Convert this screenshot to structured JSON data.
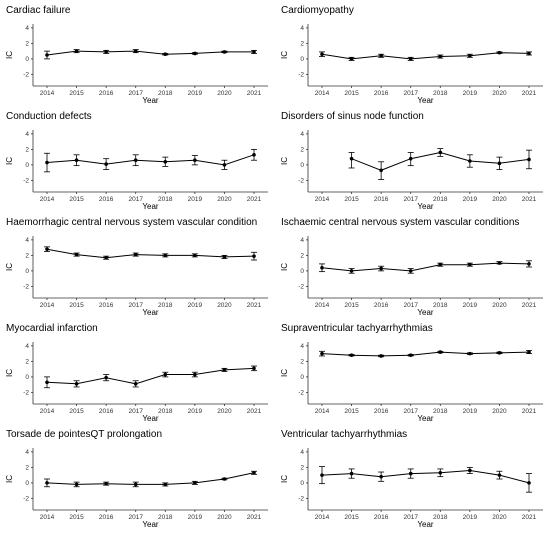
{
  "chart_data": [
    {
      "type": "line",
      "title": "Cardiac failure",
      "xlabel": "Year",
      "ylabel": "IC",
      "x": [
        "2014",
        "2015",
        "2016",
        "2017",
        "2018",
        "2019",
        "2020",
        "2021"
      ],
      "yticks": [
        "4",
        "2",
        "0",
        "-2"
      ],
      "ylim": [
        -3.5,
        4.5
      ],
      "values": [
        0.5,
        1.0,
        0.9,
        1.0,
        0.6,
        0.7,
        0.9,
        0.9
      ],
      "lower": [
        0.0,
        0.8,
        0.7,
        0.8,
        0.5,
        0.6,
        0.8,
        0.7
      ],
      "upper": [
        1.0,
        1.2,
        1.1,
        1.2,
        0.7,
        0.8,
        1.0,
        1.1
      ]
    },
    {
      "type": "line",
      "title": "Cardiomyopathy",
      "xlabel": "Year",
      "ylabel": "IC",
      "x": [
        "2014",
        "2015",
        "2016",
        "2017",
        "2018",
        "2019",
        "2020",
        "2021"
      ],
      "yticks": [
        "4",
        "2",
        "0",
        "-2"
      ],
      "ylim": [
        -3.5,
        4.5
      ],
      "values": [
        0.6,
        0.0,
        0.4,
        0.0,
        0.3,
        0.4,
        0.8,
        0.7
      ],
      "lower": [
        0.3,
        -0.2,
        0.2,
        -0.2,
        0.1,
        0.2,
        0.7,
        0.5
      ],
      "upper": [
        0.9,
        0.2,
        0.6,
        0.2,
        0.5,
        0.6,
        0.9,
        0.9
      ]
    },
    {
      "type": "line",
      "title": "Conduction defects",
      "xlabel": "Year",
      "ylabel": "IC",
      "x": [
        "2014",
        "2015",
        "2016",
        "2017",
        "2018",
        "2019",
        "2020",
        "2021"
      ],
      "yticks": [
        "4",
        "2",
        "0",
        "-2"
      ],
      "ylim": [
        -3.5,
        4.5
      ],
      "values": [
        0.3,
        0.6,
        0.1,
        0.6,
        0.4,
        0.6,
        0.0,
        1.3
      ],
      "lower": [
        -0.9,
        -0.1,
        -0.6,
        -0.1,
        -0.2,
        0.0,
        -0.6,
        0.6
      ],
      "upper": [
        1.5,
        1.3,
        0.8,
        1.3,
        1.0,
        1.2,
        0.6,
        2.0
      ]
    },
    {
      "type": "line",
      "title": "Disorders of sinus node function",
      "xlabel": "Year",
      "ylabel": "IC",
      "x": [
        "2014",
        "2015",
        "2016",
        "2017",
        "2018",
        "2019",
        "2020",
        "2021"
      ],
      "yticks": [
        "4",
        "2",
        "0",
        "-2"
      ],
      "ylim": [
        -3.5,
        4.5
      ],
      "values": [
        null,
        0.8,
        -0.7,
        0.8,
        1.6,
        0.5,
        0.2,
        0.7
      ],
      "lower": [
        null,
        -0.4,
        -1.9,
        -0.1,
        1.1,
        -0.3,
        -0.6,
        -0.5
      ],
      "upper": [
        null,
        1.6,
        0.4,
        1.6,
        2.1,
        1.3,
        1.0,
        1.9
      ]
    },
    {
      "type": "line",
      "title": "Haemorrhagic central nervous system vascular condition",
      "xlabel": "Year",
      "ylabel": "IC",
      "x": [
        "2014",
        "2015",
        "2016",
        "2017",
        "2018",
        "2019",
        "2020",
        "2021"
      ],
      "yticks": [
        "4",
        "2",
        "0",
        "-2"
      ],
      "ylim": [
        -3.5,
        4.5
      ],
      "values": [
        2.8,
        2.1,
        1.7,
        2.1,
        2.0,
        2.0,
        1.8,
        1.9
      ],
      "lower": [
        2.5,
        1.9,
        1.5,
        1.9,
        1.8,
        1.8,
        1.6,
        1.4
      ],
      "upper": [
        3.1,
        2.3,
        1.9,
        2.3,
        2.2,
        2.2,
        2.0,
        2.4
      ]
    },
    {
      "type": "line",
      "title": "Ischaemic central nervous system vascular conditions",
      "xlabel": "Year",
      "ylabel": "IC",
      "x": [
        "2014",
        "2015",
        "2016",
        "2017",
        "2018",
        "2019",
        "2020",
        "2021"
      ],
      "yticks": [
        "4",
        "2",
        "0",
        "-2"
      ],
      "ylim": [
        -3.5,
        4.5
      ],
      "values": [
        0.4,
        0.0,
        0.3,
        0.0,
        0.8,
        0.8,
        1.0,
        0.9
      ],
      "lower": [
        -0.1,
        -0.3,
        0.0,
        -0.3,
        0.6,
        0.6,
        0.9,
        0.5
      ],
      "upper": [
        0.9,
        0.3,
        0.6,
        0.3,
        1.0,
        1.0,
        1.2,
        1.3
      ]
    },
    {
      "type": "line",
      "title": "Myocardial infarction",
      "xlabel": "Year",
      "ylabel": "IC",
      "x": [
        "2014",
        "2015",
        "2016",
        "2017",
        "2018",
        "2019",
        "2020",
        "2021"
      ],
      "yticks": [
        "4",
        "2",
        "0",
        "-2"
      ],
      "ylim": [
        -3.5,
        4.5
      ],
      "values": [
        -0.7,
        -0.9,
        -0.1,
        -0.9,
        0.3,
        0.3,
        0.9,
        1.1
      ],
      "lower": [
        -1.4,
        -1.3,
        -0.5,
        -1.3,
        0.0,
        0.0,
        0.7,
        0.8
      ],
      "upper": [
        0.0,
        -0.5,
        0.3,
        -0.5,
        0.6,
        0.6,
        1.1,
        1.4
      ]
    },
    {
      "type": "line",
      "title": "Supraventricular tachyarrhythmias",
      "xlabel": "Year",
      "ylabel": "IC",
      "x": [
        "2014",
        "2015",
        "2016",
        "2017",
        "2018",
        "2019",
        "2020",
        "2021"
      ],
      "yticks": [
        "4",
        "2",
        "0",
        "-2"
      ],
      "ylim": [
        -3.5,
        4.5
      ],
      "values": [
        3.0,
        2.8,
        2.7,
        2.8,
        3.2,
        3.0,
        3.1,
        3.2
      ],
      "lower": [
        2.7,
        2.7,
        2.6,
        2.7,
        3.1,
        2.9,
        3.0,
        3.0
      ],
      "upper": [
        3.3,
        2.9,
        2.8,
        2.9,
        3.3,
        3.1,
        3.2,
        3.4
      ]
    },
    {
      "type": "line",
      "title": "Torsade de pointesQT prolongation",
      "xlabel": "Year",
      "ylabel": "IC",
      "x": [
        "2014",
        "2015",
        "2016",
        "2017",
        "2018",
        "2019",
        "2020",
        "2021"
      ],
      "yticks": [
        "4",
        "2",
        "0",
        "-2"
      ],
      "ylim": [
        -3.5,
        4.5
      ],
      "values": [
        0.0,
        -0.2,
        -0.1,
        -0.2,
        -0.2,
        0.0,
        0.5,
        1.3
      ],
      "lower": [
        -0.5,
        -0.5,
        -0.3,
        -0.5,
        -0.4,
        -0.2,
        0.4,
        1.1
      ],
      "upper": [
        0.5,
        0.1,
        0.1,
        0.1,
        0.0,
        0.2,
        0.6,
        1.5
      ]
    },
    {
      "type": "line",
      "title": "Ventricular tachyarrhythmias",
      "xlabel": "Year",
      "ylabel": "IC",
      "x": [
        "2014",
        "2015",
        "2016",
        "2017",
        "2018",
        "2019",
        "2020",
        "2021"
      ],
      "yticks": [
        "4",
        "2",
        "0",
        "-2"
      ],
      "ylim": [
        -3.5,
        4.5
      ],
      "values": [
        1.0,
        1.2,
        0.8,
        1.2,
        1.3,
        1.6,
        1.0,
        0.0
      ],
      "lower": [
        -0.1,
        0.6,
        0.2,
        0.6,
        0.8,
        1.2,
        0.5,
        -1.2
      ],
      "upper": [
        2.1,
        1.8,
        1.4,
        1.8,
        1.8,
        2.0,
        1.5,
        1.2
      ]
    }
  ]
}
